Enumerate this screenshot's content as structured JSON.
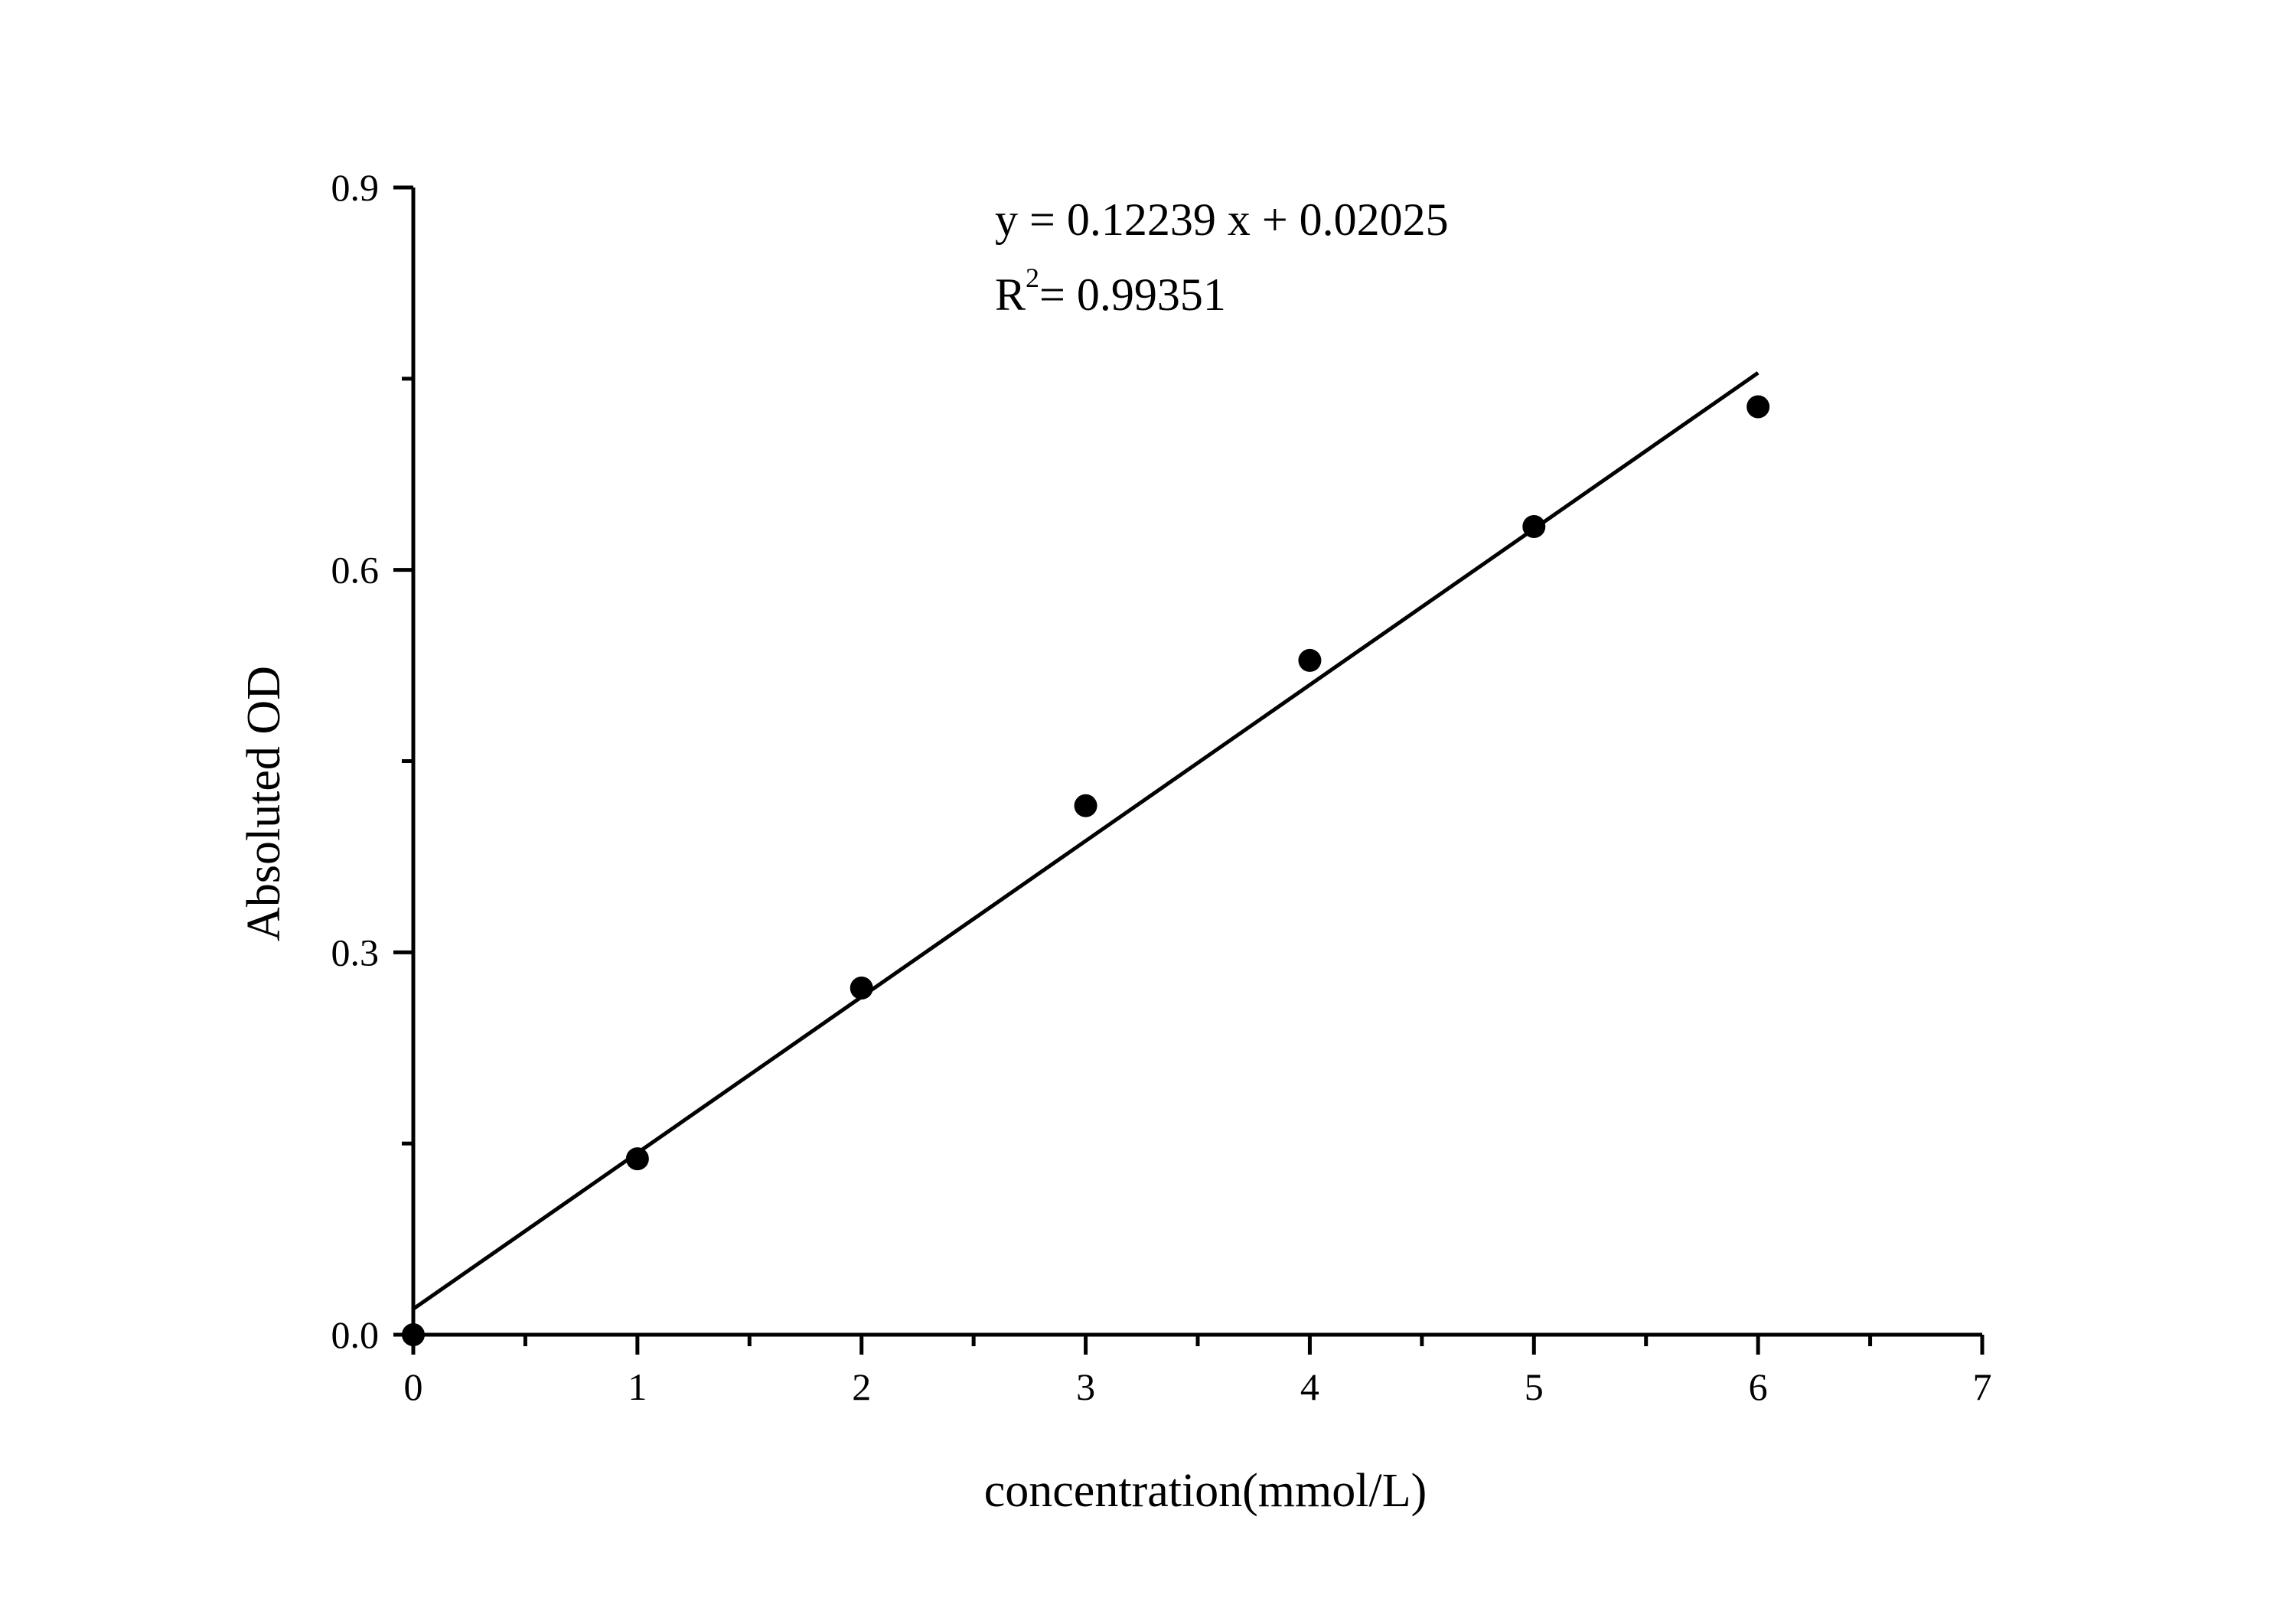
{
  "chart_data": {
    "type": "scatter",
    "title": "",
    "xlabel": "concentration(mmol/L)",
    "ylabel": "Absoluted OD",
    "xlim": [
      0,
      7
    ],
    "ylim": [
      0,
      0.9
    ],
    "x_ticks": [
      "0",
      "1",
      "2",
      "3",
      "4",
      "5",
      "6",
      "7"
    ],
    "y_ticks": [
      "0.0",
      "0.3",
      "0.6",
      "0.9"
    ],
    "grid": false,
    "legend": "none",
    "series": [
      {
        "x": [
          0,
          1,
          2,
          3,
          4,
          5,
          6
        ],
        "y": [
          0.0,
          0.138,
          0.272,
          0.415,
          0.529,
          0.634,
          0.728
        ],
        "marker": "filled-circle",
        "color": "#000000"
      }
    ],
    "fit_line": {
      "slope": 0.12239,
      "intercept": 0.02025,
      "x_range": [
        0,
        6
      ],
      "color": "#000000"
    },
    "annotations": {
      "equation": "y = 0.12239 x + 0.02025",
      "r2_base": "R",
      "r2_exponent": "2",
      "r2_value": "= 0.99351"
    }
  }
}
